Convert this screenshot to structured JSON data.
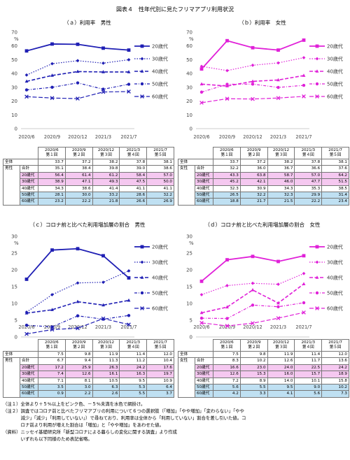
{
  "figure_title": "図表４　性年代別に見たフリマアプリ利用状況",
  "panels": [
    {
      "title": "（ａ）利用率　男性",
      "color": "#1f1fb4"
    },
    {
      "title": "（ｂ）利用率　女性",
      "color": "#e020d8"
    },
    {
      "title": "（ｃ）コロナ前と比べた利用増加層の割合　男性",
      "color": "#1f1fb4"
    },
    {
      "title": "（ｄ）コロナ前と比べた利用増加層の割合　女性",
      "color": "#e020d8"
    }
  ],
  "chart_data": [
    {
      "type": "line",
      "title": "（ａ）利用率　男性",
      "ylabel": "%",
      "ylim": [
        0,
        70
      ],
      "yticks": [
        "0",
        "10",
        "20",
        "30",
        "40",
        "50",
        "60",
        "70"
      ],
      "categories": [
        "2020/6",
        "2020/9",
        "2020/12",
        "2021/3",
        "2021/7"
      ],
      "series": [
        {
          "name": "20歳代",
          "values": [
            56.4,
            61.4,
            61.2,
            58.4,
            57.0
          ]
        },
        {
          "name": "30歳代",
          "values": [
            38.9,
            47.1,
            49.3,
            47.5,
            50.0
          ]
        },
        {
          "name": "40歳代",
          "values": [
            34.3,
            38.6,
            41.4,
            41.1,
            41.1
          ]
        },
        {
          "name": "50歳代",
          "values": [
            28.1,
            30.0,
            33.2,
            28.6,
            32.2
          ]
        },
        {
          "name": "60歳代",
          "values": [
            23.2,
            22.2,
            21.8,
            26.6,
            26.9
          ]
        }
      ]
    },
    {
      "type": "line",
      "title": "（ｂ）利用率　女性",
      "ylabel": "%",
      "ylim": [
        0,
        70
      ],
      "yticks": [
        "0",
        "10",
        "20",
        "30",
        "40",
        "50",
        "60",
        "70"
      ],
      "categories": [
        "2020/6",
        "2020/9",
        "2020/12",
        "2021/3",
        "2021/7"
      ],
      "series": [
        {
          "name": "20歳代",
          "values": [
            43.3,
            63.8,
            58.7,
            57.0,
            64.2
          ]
        },
        {
          "name": "30歳代",
          "values": [
            45.2,
            42.1,
            46.0,
            47.7,
            51.5
          ]
        },
        {
          "name": "40歳代",
          "values": [
            32.3,
            30.9,
            34.3,
            35.3,
            38.5
          ]
        },
        {
          "name": "50歳代",
          "values": [
            26.5,
            32.2,
            32.3,
            29.9,
            31.4
          ]
        },
        {
          "name": "60歳代",
          "values": [
            18.8,
            21.7,
            21.5,
            22.2,
            23.4
          ]
        }
      ]
    },
    {
      "type": "line",
      "title": "（ｃ）コロナ前と比べた利用増加層の割合　男性",
      "ylabel": "%",
      "ylim": [
        0,
        30
      ],
      "yticks": [
        "0",
        "5",
        "10",
        "15",
        "20",
        "25",
        "30"
      ],
      "categories": [
        "2020/6",
        "2020/9",
        "2020/12",
        "2021/3",
        "2021/7"
      ],
      "series": [
        {
          "name": "20歳代",
          "values": [
            17.2,
            25.9,
            26.3,
            24.2,
            17.6
          ]
        },
        {
          "name": "30歳代",
          "values": [
            7.4,
            12.6,
            16.1,
            16.3,
            19.7
          ]
        },
        {
          "name": "40歳代",
          "values": [
            7.1,
            8.1,
            10.5,
            9.5,
            10.9
          ]
        },
        {
          "name": "50歳代",
          "values": [
            3.5,
            3.0,
            6.3,
            5.3,
            6.4
          ]
        },
        {
          "name": "60歳代",
          "values": [
            0.9,
            2.2,
            2.6,
            5.5,
            3.7
          ]
        }
      ]
    },
    {
      "type": "line",
      "title": "（ｄ）コロナ前と比べた利用増加層の割合　女性",
      "ylabel": "%",
      "ylim": [
        0,
        30
      ],
      "yticks": [
        "0",
        "5",
        "10",
        "15",
        "20",
        "25",
        "30"
      ],
      "categories": [
        "2020/6",
        "2020/9",
        "2020/12",
        "2021/3",
        "2021/7"
      ],
      "series": [
        {
          "name": "20歳代",
          "values": [
            16.6,
            23.0,
            24.0,
            22.5,
            24.2
          ]
        },
        {
          "name": "30歳代",
          "values": [
            12.6,
            15.3,
            16.0,
            15.7,
            18.9
          ]
        },
        {
          "name": "40歳代",
          "values": [
            7.2,
            8.9,
            14.0,
            10.1,
            15.8
          ]
        },
        {
          "name": "50歳代",
          "values": [
            5.6,
            5.5,
            9.5,
            9.0,
            10.2
          ]
        },
        {
          "name": "60歳代",
          "values": [
            4.2,
            3.3,
            4.1,
            5.6,
            7.3
          ]
        }
      ]
    }
  ],
  "tables": [
    {
      "headers": [
        [
          "2020/6",
          "第１回"
        ],
        [
          "2020/9",
          "第２回"
        ],
        [
          "2020/12",
          "第３回"
        ],
        [
          "2021/3",
          "第４回"
        ],
        [
          "2021/7",
          "第５回"
        ]
      ],
      "total_label": "全体",
      "sex_label": "男性",
      "total_values": [
        "33.7",
        "37.2",
        "38.2",
        "37.8",
        "38.1"
      ],
      "rows": [
        {
          "label": "合計",
          "values": [
            "35.1",
            "38.4",
            "39.8",
            "39.0",
            "38.6"
          ],
          "shade": ""
        },
        {
          "label": "20歳代",
          "values": [
            "56.4",
            "61.4",
            "61.2",
            "58.4",
            "57.0"
          ],
          "shade": "pink"
        },
        {
          "label": "30歳代",
          "values": [
            "38.9",
            "47.1",
            "49.3",
            "47.5",
            "50.0"
          ],
          "shade": "pink"
        },
        {
          "label": "40歳代",
          "values": [
            "34.3",
            "38.6",
            "41.4",
            "41.1",
            "41.1"
          ],
          "shade": ""
        },
        {
          "label": "50歳代",
          "values": [
            "28.1",
            "30.0",
            "33.2",
            "28.6",
            "32.2"
          ],
          "shade": "blue"
        },
        {
          "label": "60歳代",
          "values": [
            "23.2",
            "22.2",
            "21.8",
            "26.6",
            "26.9"
          ],
          "shade": "blue"
        }
      ]
    },
    {
      "headers": [
        [
          "2020/6",
          "第１回"
        ],
        [
          "2020/9",
          "第２回"
        ],
        [
          "2020/12",
          "第３回"
        ],
        [
          "2021/3",
          "第４回"
        ],
        [
          "2021/7",
          "第５回"
        ]
      ],
      "total_label": "全体",
      "sex_label": "女性",
      "total_values": [
        "33.7",
        "37.2",
        "38.2",
        "37.8",
        "38.1"
      ],
      "rows": [
        {
          "label": "合計",
          "values": [
            "32.2",
            "36.0",
            "36.7",
            "36.6",
            "37.6"
          ],
          "shade": ""
        },
        {
          "label": "20歳代",
          "values": [
            "43.3",
            "63.8",
            "58.7",
            "57.0",
            "64.2"
          ],
          "shade": "pink"
        },
        {
          "label": "30歳代",
          "values": [
            "45.2",
            "42.1",
            "46.0",
            "47.7",
            "51.5"
          ],
          "shade": "pink"
        },
        {
          "label": "40歳代",
          "values": [
            "32.3",
            "30.9",
            "34.3",
            "35.3",
            "38.5"
          ],
          "shade": ""
        },
        {
          "label": "50歳代",
          "values": [
            "26.5",
            "32.2",
            "32.3",
            "29.9",
            "31.4"
          ],
          "shade": "blue"
        },
        {
          "label": "60歳代",
          "values": [
            "18.8",
            "21.7",
            "21.5",
            "22.2",
            "23.4"
          ],
          "shade": "blue"
        }
      ]
    },
    {
      "headers": [
        [
          "2020/6",
          "第１回"
        ],
        [
          "2020/9",
          "第２回"
        ],
        [
          "2020/12",
          "第３回"
        ],
        [
          "2021/3",
          "第４回"
        ],
        [
          "2021/7",
          "第５回"
        ]
      ],
      "total_label": "全体",
      "sex_label": "男性",
      "total_values": [
        "7.5",
        "9.8",
        "11.9",
        "11.4",
        "12.0"
      ],
      "rows": [
        {
          "label": "合計",
          "values": [
            "6.7",
            "9.4",
            "11.3",
            "11.2",
            "10.4"
          ],
          "shade": ""
        },
        {
          "label": "20歳代",
          "values": [
            "17.2",
            "25.9",
            "26.3",
            "24.2",
            "17.6"
          ],
          "shade": "pink"
        },
        {
          "label": "30歳代",
          "values": [
            "7.4",
            "12.6",
            "16.1",
            "16.3",
            "19.7"
          ],
          "shade": "pink"
        },
        {
          "label": "40歳代",
          "values": [
            "7.1",
            "8.1",
            "10.5",
            "9.5",
            "10.9"
          ],
          "shade": ""
        },
        {
          "label": "50歳代",
          "values": [
            "3.5",
            "3.0",
            "6.3",
            "5.3",
            "6.4"
          ],
          "shade": "blue"
        },
        {
          "label": "60歳代",
          "values": [
            "0.9",
            "2.2",
            "2.6",
            "5.5",
            "3.7"
          ],
          "shade": "blue"
        }
      ]
    },
    {
      "headers": [
        [
          "2020/6",
          "第１回"
        ],
        [
          "2020/9",
          "第２回"
        ],
        [
          "2020/12",
          "第３回"
        ],
        [
          "2021/3",
          "第４回"
        ],
        [
          "2021/7",
          "第５回"
        ]
      ],
      "total_label": "全体",
      "sex_label": "女性",
      "total_values": [
        "7.5",
        "9.8",
        "11.9",
        "11.4",
        "12.0"
      ],
      "rows": [
        {
          "label": "合計",
          "values": [
            "8.3",
            "10.2",
            "12.6",
            "11.7",
            "13.6"
          ],
          "shade": ""
        },
        {
          "label": "20歳代",
          "values": [
            "16.6",
            "23.0",
            "24.0",
            "22.5",
            "24.2"
          ],
          "shade": "pink"
        },
        {
          "label": "30歳代",
          "values": [
            "12.6",
            "15.3",
            "16.0",
            "15.7",
            "18.9"
          ],
          "shade": "pink"
        },
        {
          "label": "40歳代",
          "values": [
            "7.2",
            "8.9",
            "14.0",
            "10.1",
            "15.8"
          ],
          "shade": ""
        },
        {
          "label": "50歳代",
          "values": [
            "5.6",
            "5.5",
            "9.5",
            "9.0",
            "10.2"
          ],
          "shade": "blue"
        },
        {
          "label": "60歳代",
          "values": [
            "4.2",
            "3.3",
            "4.1",
            "5.6",
            "7.3"
          ],
          "shade": "blue"
        }
      ]
    }
  ],
  "notes": [
    "（注１）全体より＋５%以上をピンク色、－５%未満を水色で網掛け。",
    "（注２）調査ではコロナ前と比べたフリマアプリの利用について６つの選択肢（「増加」「やや増加」「変わらない」「やや",
    "　　　　減少」「減少」「利用していない」）で尋ねており、利用率は全体から「利用していない」割合を差し引いた値。コ",
    "　　　　ロナ前より利用が増えた割合は「増加」と「やや増加」をあわせた値。",
    "（資料）ニッセイ基礎研究所「新型コロナによる暮らしの変化に関する調査」より作成",
    "　　　　いずれも以下同様のため表記省略。"
  ]
}
